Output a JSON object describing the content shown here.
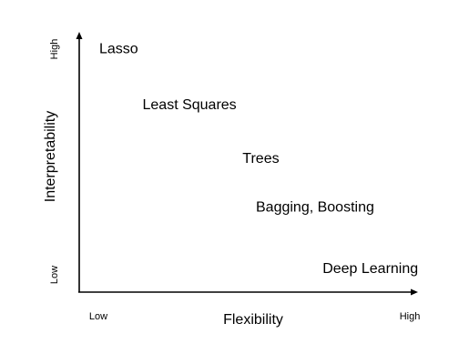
{
  "chart_data": {
    "type": "scatter",
    "title": "",
    "xlabel": "Flexibility",
    "ylabel": "Interpretability",
    "xlim": [
      0,
      1
    ],
    "ylim": [
      0,
      1
    ],
    "grid": false,
    "x_tick_labels": {
      "low": "Low",
      "high": "High"
    },
    "y_tick_labels": {
      "low": "Low",
      "high": "High"
    },
    "points": [
      {
        "label": "Lasso",
        "x": 0.06,
        "y": 0.95
      },
      {
        "label": "Least Squares",
        "x": 0.19,
        "y": 0.73
      },
      {
        "label": "Trees",
        "x": 0.49,
        "y": 0.52
      },
      {
        "label": "Bagging, Boosting",
        "x": 0.53,
        "y": 0.33
      },
      {
        "label": "Deep Learning",
        "x": 0.73,
        "y": 0.09
      }
    ]
  }
}
